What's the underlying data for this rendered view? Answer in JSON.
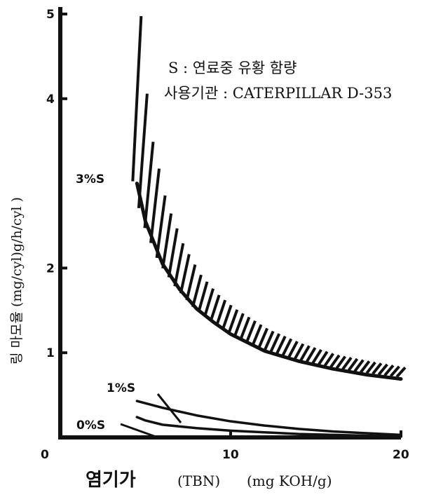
{
  "chart_data": {
    "type": "line",
    "x_label_main": "염기가",
    "x_label_unit_1": "(TBN)",
    "x_label_unit_2": "(mg KOH/g)",
    "y_label": "링 마모율 (mg/cyl)g/h/cyl )",
    "xlim": [
      0,
      20
    ],
    "ylim": [
      0,
      5
    ],
    "x_ticks": [
      "0",
      "10",
      "20"
    ],
    "y_ticks": [
      "1",
      "2",
      "4",
      "5"
    ],
    "annotations": {
      "line1": "S : 연료중 유황 함량",
      "line2": "사용기관 : CATERPILLAR D-353"
    },
    "series": [
      {
        "name": "3%S",
        "x": [
          4.5,
          5,
          6,
          7,
          8,
          9,
          10,
          12,
          14,
          16,
          18,
          20
        ],
        "values": [
          3.0,
          2.55,
          2.05,
          1.75,
          1.52,
          1.36,
          1.22,
          1.02,
          0.9,
          0.81,
          0.74,
          0.69
        ]
      },
      {
        "name": "1%S",
        "x": [
          4.5,
          6,
          8,
          10,
          12,
          14,
          16,
          18,
          20
        ],
        "values": [
          0.43,
          0.35,
          0.26,
          0.19,
          0.14,
          0.1,
          0.07,
          0.05,
          0.03
        ]
      },
      {
        "name": "0%S",
        "x": [
          4.5,
          5,
          6,
          8,
          10,
          12,
          14,
          16,
          18,
          20
        ],
        "values": [
          0.24,
          0.2,
          0.15,
          0.11,
          0.08,
          0.06,
          0.04,
          0.03,
          0.02,
          0.01
        ]
      }
    ],
    "band": {
      "series": "3%S",
      "x": [
        4.5,
        5,
        6,
        7,
        8,
        9,
        10,
        12,
        14,
        16,
        18,
        20
      ],
      "values": [
        5.0,
        3.7,
        2.8,
        2.3,
        1.95,
        1.72,
        1.55,
        1.3,
        1.13,
        1.0,
        0.92,
        0.85
      ]
    }
  }
}
